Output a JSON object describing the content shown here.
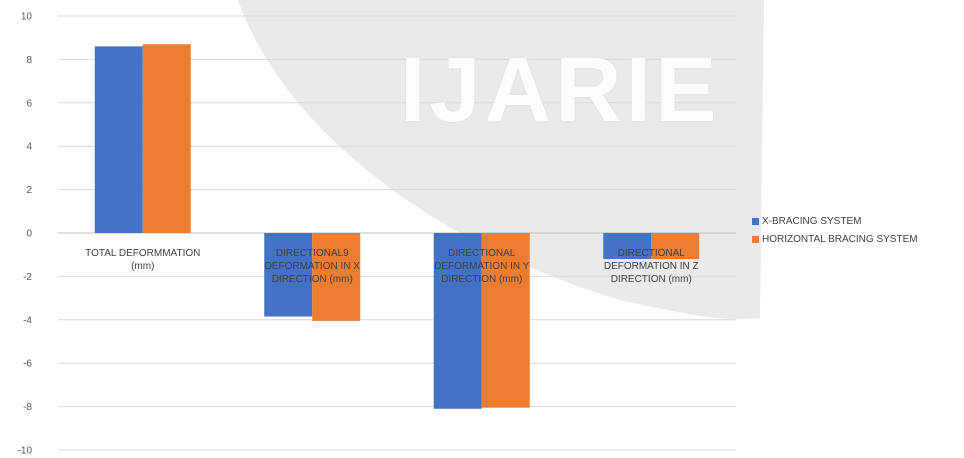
{
  "watermark": "IJARIE",
  "chart_data": {
    "type": "bar",
    "title": "",
    "xlabel": "",
    "ylabel": "",
    "ylim": [
      -10,
      10
    ],
    "ytick_step": 2,
    "grid": true,
    "legend_position": "right",
    "categories": [
      "TOTAL DEFORMMATION (mm)",
      "DIRECTIONAL9 DEFORMATION IN X DIRECTION (mm)",
      "DIRECTIONAL DEFORMATION IN Y DIRECTION  (mm)",
      "DIRECTIONAL DEFORMATION IN Z DIRECTION (mm)"
    ],
    "series": [
      {
        "name": "X-BRACING SYSTEM",
        "color": "#4472c4",
        "values": [
          8.6,
          -3.85,
          -8.1,
          -1.2
        ]
      },
      {
        "name": "HORIZONTAL BRACING SYSTEM",
        "color": "#ed7d31",
        "values": [
          8.7,
          -4.05,
          -8.05,
          -1.2
        ]
      }
    ]
  }
}
